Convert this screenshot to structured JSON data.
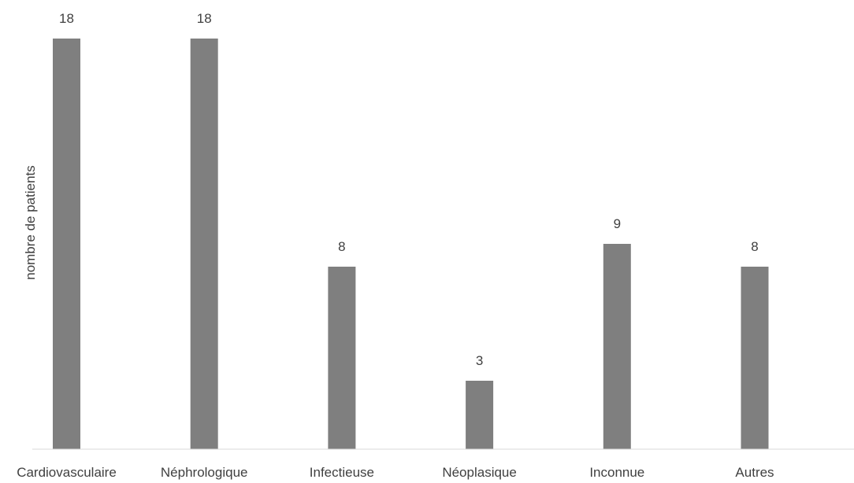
{
  "chart_data": {
    "type": "bar",
    "title": "",
    "xlabel": "",
    "ylabel": "nombre de patients",
    "categories": [
      "Cardiovasculaire",
      "Néphrologique",
      "Infectieuse",
      "Néoplasique",
      "Inconnue",
      "Autres"
    ],
    "values": [
      18,
      18,
      8,
      3,
      9,
      8
    ],
    "ylim": [
      0,
      18
    ],
    "grid": false,
    "legend": "none",
    "data_labels": true,
    "bar_color": "#7f7f7f",
    "axis_color": "#d9d9d9"
  }
}
